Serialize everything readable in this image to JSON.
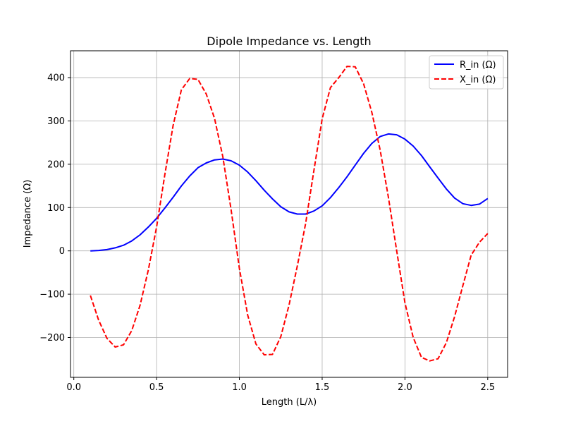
{
  "chart_data": {
    "type": "line",
    "title": "Dipole Impedance vs. Length",
    "xlabel": "Length (L/λ)",
    "ylabel": "Impedance (Ω)",
    "xlim": [
      -0.02,
      2.62
    ],
    "ylim": [
      -292,
      462
    ],
    "x_ticks": [
      0.0,
      0.5,
      1.0,
      1.5,
      2.0,
      2.5
    ],
    "x_tick_labels": [
      "0.0",
      "0.5",
      "1.0",
      "1.5",
      "2.0",
      "2.5"
    ],
    "y_ticks": [
      -200,
      -100,
      0,
      100,
      200,
      300,
      400
    ],
    "y_tick_labels": [
      "−200",
      "−100",
      "0",
      "100",
      "200",
      "300",
      "400"
    ],
    "grid": true,
    "legend_position": "top-right",
    "series": [
      {
        "name": "R_in (Ω)",
        "color": "#0000ff",
        "style": "solid",
        "x": [
          0.1,
          0.15,
          0.2,
          0.25,
          0.3,
          0.35,
          0.4,
          0.45,
          0.5,
          0.55,
          0.6,
          0.65,
          0.7,
          0.75,
          0.8,
          0.85,
          0.9,
          0.95,
          1.0,
          1.05,
          1.1,
          1.15,
          1.2,
          1.25,
          1.3,
          1.35,
          1.4,
          1.45,
          1.5,
          1.55,
          1.6,
          1.65,
          1.7,
          1.75,
          1.8,
          1.85,
          1.9,
          1.95,
          2.0,
          2.05,
          2.1,
          2.15,
          2.2,
          2.25,
          2.3,
          2.35,
          2.4,
          2.45,
          2.5
        ],
        "values": [
          0,
          1,
          3,
          7,
          13,
          23,
          37,
          55,
          75,
          99,
          124,
          150,
          173,
          192,
          203,
          210,
          212,
          208,
          198,
          182,
          162,
          140,
          120,
          102,
          90,
          85,
          85,
          92,
          104,
          123,
          146,
          171,
          198,
          225,
          248,
          264,
          270,
          268,
          258,
          242,
          220,
          194,
          168,
          143,
          122,
          109,
          105,
          108,
          121
        ]
      },
      {
        "name": "X_in (Ω)",
        "color": "#ff0000",
        "style": "dashed",
        "x": [
          0.1,
          0.15,
          0.2,
          0.25,
          0.3,
          0.35,
          0.4,
          0.45,
          0.5,
          0.55,
          0.6,
          0.65,
          0.7,
          0.75,
          0.8,
          0.85,
          0.9,
          0.95,
          1.0,
          1.05,
          1.1,
          1.15,
          1.2,
          1.25,
          1.3,
          1.35,
          1.4,
          1.45,
          1.5,
          1.55,
          1.6,
          1.65,
          1.7,
          1.75,
          1.8,
          1.85,
          1.9,
          1.95,
          2.0,
          2.05,
          2.1,
          2.15,
          2.2,
          2.25,
          2.3,
          2.35,
          2.4,
          2.45,
          2.5
        ],
        "values": [
          -103,
          -160,
          -202,
          -222,
          -217,
          -184,
          -126,
          -44,
          55,
          177,
          290,
          372,
          398,
          396,
          362,
          306,
          217,
          95,
          -40,
          -148,
          -215,
          -240,
          -239,
          -198,
          -125,
          -35,
          63,
          185,
          305,
          377,
          400,
          426,
          425,
          386,
          320,
          233,
          124,
          0,
          -120,
          -200,
          -246,
          -254,
          -249,
          -212,
          -152,
          -80,
          -10,
          20,
          40
        ]
      }
    ]
  }
}
